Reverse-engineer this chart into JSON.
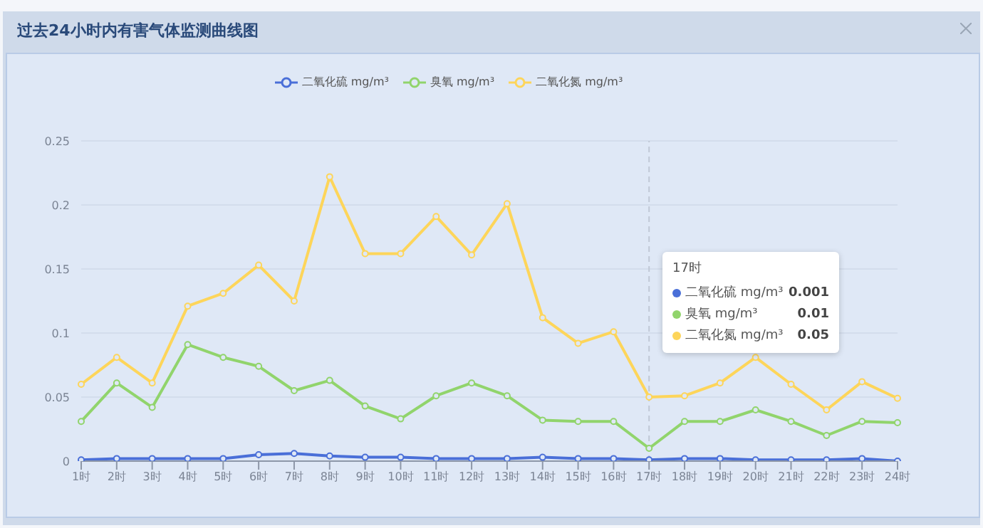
{
  "chart_data": {
    "type": "line",
    "title": "过去24小时内有害气体监测曲线图",
    "categories": [
      "1时",
      "2时",
      "3时",
      "4时",
      "5时",
      "6时",
      "7时",
      "8时",
      "9时",
      "10时",
      "11时",
      "12时",
      "13时",
      "14时",
      "15时",
      "16时",
      "17时",
      "18时",
      "19时",
      "20时",
      "21时",
      "22时",
      "23时",
      "24时"
    ],
    "series": [
      {
        "name": "二氧化硫 mg/m³",
        "color": "#4a6fd8",
        "values": [
          0.001,
          0.002,
          0.002,
          0.002,
          0.002,
          0.005,
          0.006,
          0.004,
          0.003,
          0.003,
          0.002,
          0.002,
          0.002,
          0.003,
          0.002,
          0.002,
          0.001,
          0.002,
          0.002,
          0.001,
          0.001,
          0.001,
          0.002,
          0.0
        ]
      },
      {
        "name": "臭氧 mg/m³",
        "color": "#91d46c",
        "values": [
          0.031,
          0.061,
          0.042,
          0.091,
          0.081,
          0.074,
          0.055,
          0.063,
          0.043,
          0.033,
          0.051,
          0.061,
          0.051,
          0.032,
          0.031,
          0.031,
          0.01,
          0.031,
          0.031,
          0.04,
          0.031,
          0.02,
          0.031,
          0.03
        ]
      },
      {
        "name": "二氧化氮 mg/m³",
        "color": "#fdd55a",
        "values": [
          0.06,
          0.081,
          0.061,
          0.121,
          0.131,
          0.153,
          0.125,
          0.222,
          0.162,
          0.162,
          0.191,
          0.161,
          0.201,
          0.112,
          0.092,
          0.101,
          0.05,
          0.051,
          0.061,
          0.081,
          0.06,
          0.04,
          0.062,
          0.049
        ]
      }
    ],
    "ylim": [
      0,
      0.25
    ],
    "yticks": [
      0,
      0.05,
      0.1,
      0.15,
      0.2,
      0.25
    ],
    "grid": "y",
    "legend": "top",
    "marker": "circle",
    "line_style": "solid",
    "ref_lines": [
      {
        "axis": "x",
        "value": "17时",
        "color": "#c0c8d6",
        "line_style": "dashed"
      }
    ],
    "annotations": [
      "17时",
      "二氧化硫 mg/m³",
      "0.001",
      "臭氧 mg/m³",
      "0.01",
      "二氧化氮 mg/m³",
      "0.05"
    ]
  }
}
